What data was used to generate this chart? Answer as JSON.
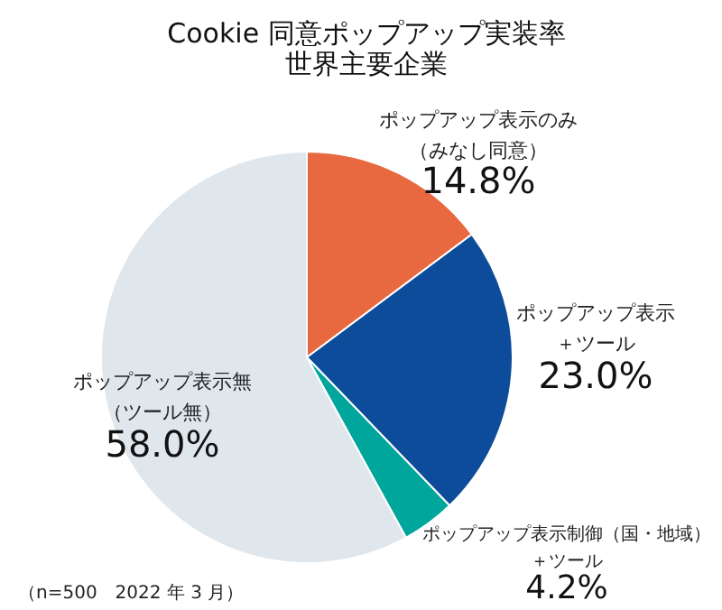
{
  "chart_data": {
    "type": "pie",
    "title": "Cookie 同意ポップアップ実装率",
    "subtitle": "世界主要企業",
    "categories": [
      "ポップアップ表示のみ（みなし同意）",
      "ポップアップ表示＋ツール",
      "ポップアップ表示制御（国・地域）＋ツール",
      "ポップアップ表示無（ツール無）"
    ],
    "values": [
      14.8,
      23.0,
      4.2,
      58.0
    ],
    "value_labels": [
      "14.8%",
      "23.0%",
      "4.2%",
      "58.0%"
    ],
    "colors": [
      "#e8693f",
      "#0d4c9a",
      "#00a59b",
      "#dfe6ec"
    ],
    "annotations": [
      "（n=500　2022 年 3 月）"
    ]
  }
}
